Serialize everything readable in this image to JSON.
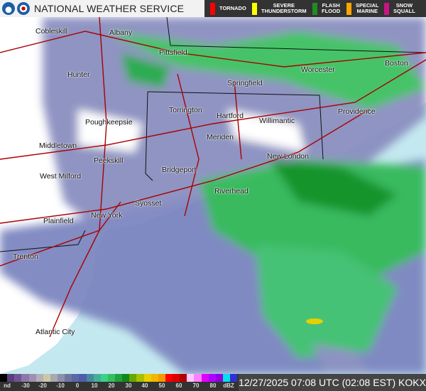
{
  "header": {
    "title": "NATIONAL WEATHER SERVICE",
    "logos": [
      "noaa-logo",
      "nws-logo"
    ],
    "warnings": [
      {
        "label1": "TORNADO",
        "label2": "",
        "color": "#ff0000"
      },
      {
        "label1": "SEVERE",
        "label2": "THUNDERSTORM",
        "color": "#ffff00"
      },
      {
        "label1": "FLASH",
        "label2": "FLOOD",
        "color": "#228b22"
      },
      {
        "label1": "SPECIAL",
        "label2": "MARINE",
        "color": "#ffa500"
      },
      {
        "label1": "SNOW",
        "label2": "SQUALL",
        "color": "#c71585"
      }
    ]
  },
  "map": {
    "cities": [
      "Cobleskill",
      "Albany",
      "Pittsfield",
      "Hunter",
      "Worcester",
      "Boston",
      "Springfield",
      "Torrington",
      "Hartford",
      "Providence",
      "Poughkeepsie",
      "Willimantic",
      "Meriden",
      "Middletown",
      "New London",
      "Peekskill",
      "Bridgeport",
      "West Milford",
      "Riverhead",
      "Syosset",
      "New York",
      "Plainfield",
      "Trenton",
      "Atlantic City"
    ]
  },
  "colorbar": {
    "colors": [
      "#000000",
      "#5a3d7a",
      "#6f5594",
      "#8a78a8",
      "#9f90b0",
      "#b4b0b8",
      "#cac8a8",
      "#a8a8b0",
      "#8c90ac",
      "#6e76a0",
      "#5a68a8",
      "#4e5ea8",
      "#4888a0",
      "#44b098",
      "#3cd088",
      "#30c060",
      "#20a040",
      "#108818",
      "#68a800",
      "#a8c000",
      "#e8d000",
      "#f0b800",
      "#f89800",
      "#ff0000",
      "#e00000",
      "#b00000",
      "#ffc8ff",
      "#ff80ff",
      "#e000ff",
      "#b000ff",
      "#9000e0",
      "#00e0f0",
      "#3030d0"
    ],
    "ticks": [
      "nd",
      "-30",
      "-20",
      "-10",
      "0",
      "10",
      "20",
      "30",
      "40",
      "50",
      "60",
      "70",
      "80",
      "dBZ"
    ]
  },
  "timestamp": "12/27/2025 07:08 UTC (02:08 EST) KOKX"
}
